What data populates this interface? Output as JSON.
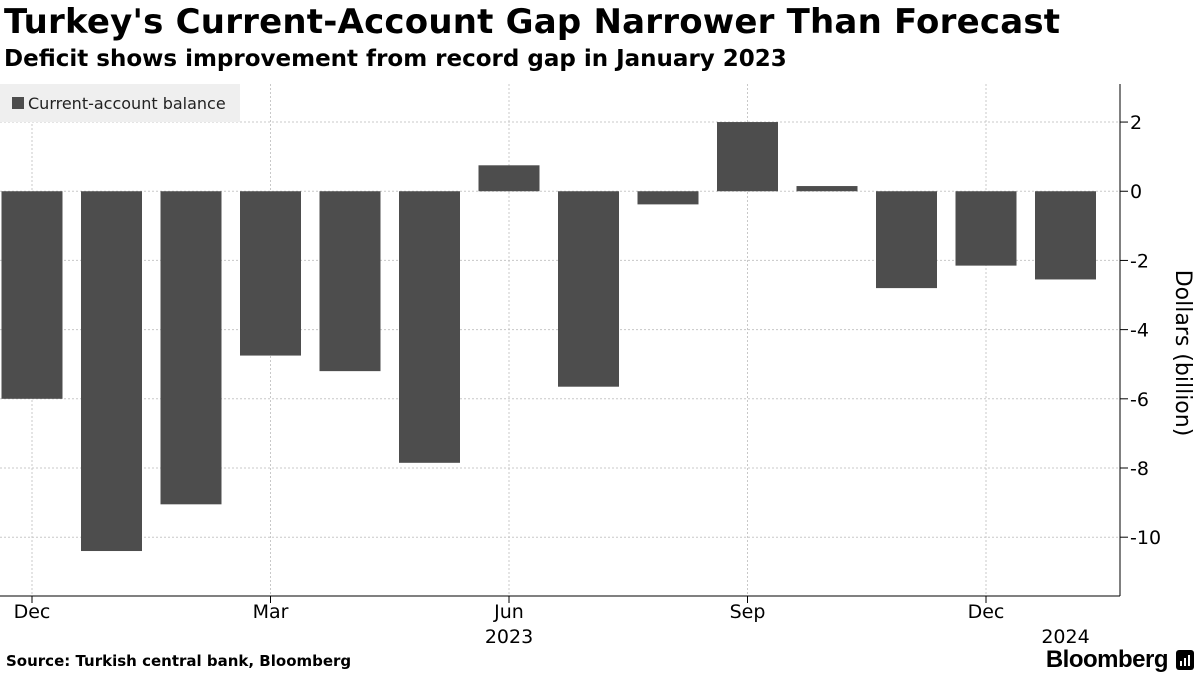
{
  "title": "Turkey's Current-Account Gap Narrower Than Forecast",
  "subtitle": "Deficit shows improvement from record gap in January 2023",
  "legend": {
    "label": "Current-account balance"
  },
  "source": "Source: Turkish central bank, Bloomberg",
  "brand": "Bloomberg",
  "colors": {
    "bar": "#4d4d4d",
    "grid": "#c8c8c8",
    "axis": "#000000"
  },
  "chart_data": {
    "type": "bar",
    "title": "Turkey's Current-Account Gap Narrower Than Forecast",
    "subtitle": "Deficit shows improvement from record gap in January 2023",
    "ylabel": "Dollars (billion)",
    "xlabel": "",
    "legend_position": "top-left",
    "grid": true,
    "ylim": [
      -11.7,
      3.1
    ],
    "yticks": [
      2,
      0,
      -2,
      -4,
      -6,
      -8,
      -10
    ],
    "ytick_labels": [
      "2",
      "0",
      "-2",
      "-4",
      "-6",
      "-8",
      "-10"
    ],
    "categories": [
      "Dec 2022",
      "Jan 2023",
      "Feb 2023",
      "Mar 2023",
      "Apr 2023",
      "May 2023",
      "Jun 2023",
      "Jul 2023",
      "Aug 2023",
      "Sep 2023",
      "Oct 2023",
      "Nov 2023",
      "Dec 2023",
      "Jan 2024"
    ],
    "series": [
      {
        "name": "Current-account balance",
        "values": [
          -6.0,
          -10.4,
          -9.05,
          -4.75,
          -5.2,
          -7.85,
          0.75,
          -5.65,
          -0.38,
          2.0,
          0.15,
          -2.8,
          -2.15,
          -2.55
        ]
      }
    ],
    "xtick_labels": [
      {
        "label": "Dec",
        "index": 0
      },
      {
        "label": "Mar",
        "index": 3
      },
      {
        "label": "Jun",
        "index": 6
      },
      {
        "label": "Sep",
        "index": 9
      },
      {
        "label": "Dec",
        "index": 12
      }
    ],
    "year_labels": [
      {
        "label": "2023",
        "index": 6
      },
      {
        "label": "2024",
        "index": 13
      }
    ]
  }
}
